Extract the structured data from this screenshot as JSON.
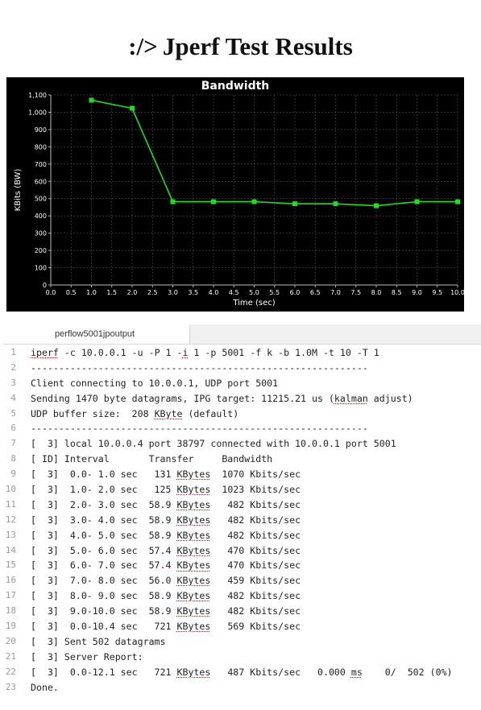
{
  "header": {
    "prefix": ":/>",
    "title": "Jperf Test Results"
  },
  "chart_data": {
    "type": "line",
    "title": "Bandwidth",
    "xlabel": "Time (sec)",
    "ylabel": "KBits (BW)",
    "xlim": [
      0,
      10
    ],
    "ylim": [
      0,
      1100
    ],
    "x_ticks": [
      0.0,
      0.5,
      1.0,
      1.5,
      2.0,
      2.5,
      3.0,
      3.5,
      4.0,
      4.5,
      5.0,
      5.5,
      6.0,
      6.5,
      7.0,
      7.5,
      8.0,
      8.5,
      9.0,
      9.5,
      10.0
    ],
    "x_tick_labels": [
      "0.0",
      "0.5",
      "1.0",
      "1.5",
      "2.0",
      "2.5",
      "3.0",
      "3.5",
      "4.0",
      "4.5",
      "5.0",
      "5.5",
      "6.0",
      "6.5",
      "7.0",
      "7.5",
      "8.0",
      "8.5",
      "9.0",
      "9.5",
      "10.0"
    ],
    "y_ticks": [
      0,
      100,
      200,
      300,
      400,
      500,
      600,
      700,
      800,
      900,
      1000,
      1100
    ],
    "y_tick_labels": [
      "0",
      "100",
      "200",
      "300",
      "400",
      "500",
      "600",
      "700",
      "800",
      "900",
      "1,000",
      "1,100"
    ],
    "grid": true,
    "series": [
      {
        "x": [
          1,
          2,
          3,
          4,
          5,
          6,
          7,
          8,
          9,
          10
        ],
        "y": [
          1070,
          1023,
          482,
          482,
          482,
          470,
          470,
          459,
          482,
          482
        ],
        "color": "#22dd22"
      }
    ],
    "background": "#000000",
    "text_color": "#ffffff"
  },
  "editor": {
    "tab_label": "perflow5001jpoutput",
    "lines": [
      [
        {
          "t": "iperf",
          "s": true
        },
        {
          "t": " -c 10.0.0.1 -u -P 1 -"
        },
        {
          "t": "i",
          "s": true
        },
        {
          "t": " 1 -p 5001 -f k -b 1.0M -t 10 -T 1"
        }
      ],
      [
        {
          "t": "------------------------------------------------------------"
        }
      ],
      [
        {
          "t": "Client connecting to 10.0.0.1, UDP port 5001"
        }
      ],
      [
        {
          "t": "Sending 1470 byte datagrams, IPG target: 11215.21 us ("
        },
        {
          "t": "kalman",
          "s": true
        },
        {
          "t": " adjust)"
        }
      ],
      [
        {
          "t": "UDP buffer size:  208 "
        },
        {
          "t": "KByte",
          "s": true
        },
        {
          "t": " (default)"
        }
      ],
      [
        {
          "t": "------------------------------------------------------------"
        }
      ],
      [
        {
          "t": "[  3] local 10.0.0.4 port 38797 connected with 10.0.0.1 port 5001"
        }
      ],
      [
        {
          "t": "[ ID] Interval       Transfer     Bandwidth"
        }
      ],
      [
        {
          "t": "[  3]  0.0- 1.0 sec   131 "
        },
        {
          "t": "KBytes",
          "s": true
        },
        {
          "t": "  1070 Kbits/sec"
        }
      ],
      [
        {
          "t": "[  3]  1.0- 2.0 sec   125 "
        },
        {
          "t": "KBytes",
          "s": true
        },
        {
          "t": "  1023 Kbits/sec"
        }
      ],
      [
        {
          "t": "[  3]  2.0- 3.0 sec  58.9 "
        },
        {
          "t": "KBytes",
          "s": true
        },
        {
          "t": "   482 Kbits/sec"
        }
      ],
      [
        {
          "t": "[  3]  3.0- 4.0 sec  58.9 "
        },
        {
          "t": "KBytes",
          "s": true
        },
        {
          "t": "   482 Kbits/sec"
        }
      ],
      [
        {
          "t": "[  3]  4.0- 5.0 sec  58.9 "
        },
        {
          "t": "KBytes",
          "s": true
        },
        {
          "t": "   482 Kbits/sec"
        }
      ],
      [
        {
          "t": "[  3]  5.0- 6.0 sec  57.4 "
        },
        {
          "t": "KBytes",
          "s": true
        },
        {
          "t": "   470 Kbits/sec"
        }
      ],
      [
        {
          "t": "[  3]  6.0- 7.0 sec  57.4 "
        },
        {
          "t": "KBytes",
          "s": true
        },
        {
          "t": "   470 Kbits/sec"
        }
      ],
      [
        {
          "t": "[  3]  7.0- 8.0 sec  56.0 "
        },
        {
          "t": "KBytes",
          "s": true
        },
        {
          "t": "   459 Kbits/sec"
        }
      ],
      [
        {
          "t": "[  3]  8.0- 9.0 sec  58.9 "
        },
        {
          "t": "KBytes",
          "s": true
        },
        {
          "t": "   482 Kbits/sec"
        }
      ],
      [
        {
          "t": "[  3]  9.0-10.0 sec  58.9 "
        },
        {
          "t": "KBytes",
          "s": true
        },
        {
          "t": "   482 Kbits/sec"
        }
      ],
      [
        {
          "t": "[  3]  0.0-10.4 sec   721 "
        },
        {
          "t": "KBytes",
          "s": true
        },
        {
          "t": "   569 Kbits/sec"
        }
      ],
      [
        {
          "t": "[  3] Sent 502 datagrams"
        }
      ],
      [
        {
          "t": "[  3] Server Report:"
        }
      ],
      [
        {
          "t": "[  3]  0.0-12.1 sec   721 "
        },
        {
          "t": "KBytes",
          "s": true
        },
        {
          "t": "   487 Kbits/sec   0.000 "
        },
        {
          "t": "ms",
          "s": true
        },
        {
          "t": "    0/  502 (0%)"
        }
      ],
      [
        {
          "t": "Done."
        }
      ]
    ]
  }
}
